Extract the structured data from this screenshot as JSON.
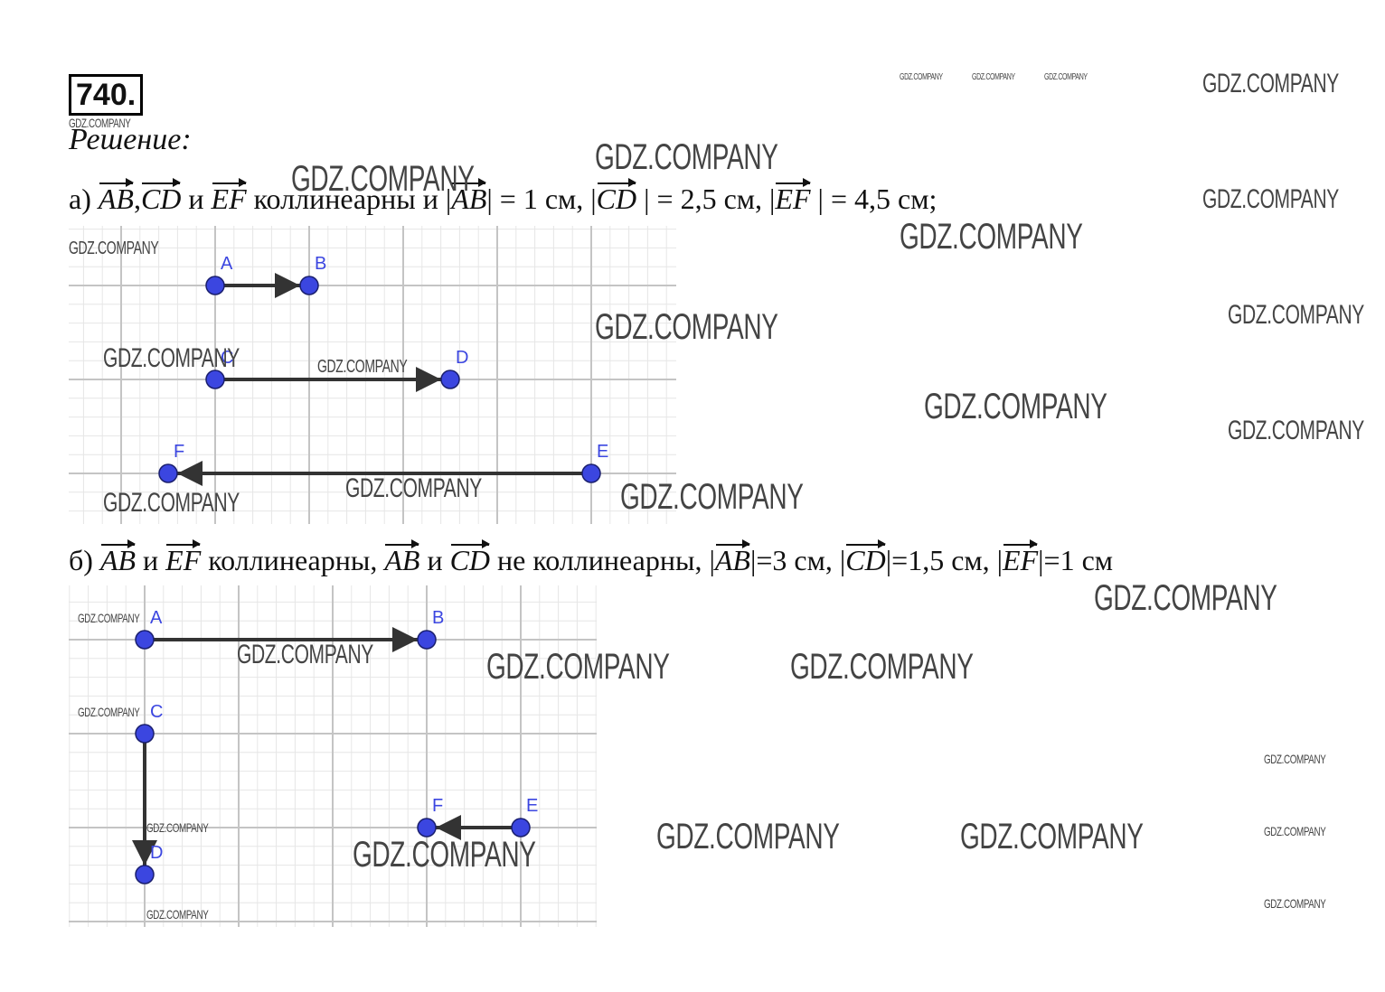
{
  "problem_number": "740.",
  "solution_title": "Решение:",
  "task_a": {
    "label": "а)",
    "vec1": "AB",
    "sep1": ",",
    "vec2": "CD",
    "conj": "и",
    "vec3": "EF",
    "text1": "коллинеарны и |",
    "vec4": "AB",
    "text2": "|  =  1 см, |",
    "vec5": "CD",
    "text3": " | = 2,5 см, |",
    "vec6": "EF",
    "text4": " | = 4,5 см;"
  },
  "task_b": {
    "label": "б)",
    "vec1": "AB",
    "conj1": "и",
    "vec2": "EF",
    "text1": "коллинеарны,",
    "vec3": "AB",
    "conj2": "и",
    "vec4": "CD",
    "text2": "не коллинеарны, |",
    "vec5": "AB",
    "text3": "|=3 см, |",
    "vec6": "CD",
    "text4": "|=1,5 см, |",
    "vec7": "EF",
    "text5": "|=1 см"
  },
  "figure_a": {
    "points": [
      {
        "label": "A",
        "x": 0,
        "y": 2
      },
      {
        "label": "B",
        "x": 1,
        "y": 2
      },
      {
        "label": "C",
        "x": 0,
        "y": 1
      },
      {
        "label": "D",
        "x": 2.5,
        "y": 1
      },
      {
        "label": "E",
        "x": 4,
        "y": 0
      },
      {
        "label": "F",
        "x": -0.5,
        "y": 0
      }
    ],
    "vectors": [
      [
        "A",
        "B"
      ],
      [
        "C",
        "D"
      ],
      [
        "E",
        "F"
      ]
    ]
  },
  "figure_b": {
    "points": [
      {
        "label": "A",
        "x": 0,
        "y": 3
      },
      {
        "label": "B",
        "x": 3,
        "y": 3
      },
      {
        "label": "C",
        "x": 0,
        "y": 2
      },
      {
        "label": "D",
        "x": 0,
        "y": 0.5
      },
      {
        "label": "E",
        "x": 4,
        "y": 1
      },
      {
        "label": "F",
        "x": 3,
        "y": 1
      }
    ],
    "vectors": [
      [
        "A",
        "B"
      ],
      [
        "C",
        "D"
      ],
      [
        "E",
        "F"
      ]
    ]
  },
  "colors": {
    "point": "#3b46e0",
    "point_stroke": "#1a1f6e",
    "vector": "#333333",
    "grid_major": "#c4c4c4",
    "grid_minor": "#e6e6e6"
  },
  "watermark": "GDZ.COMPANY"
}
